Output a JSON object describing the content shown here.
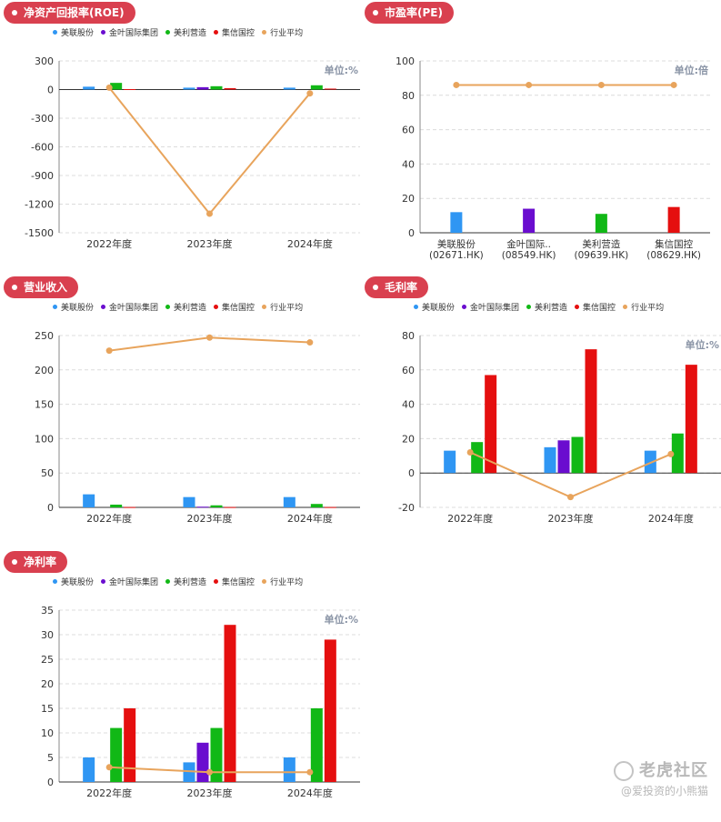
{
  "legend": [
    {
      "name": "美联股份",
      "color": "#2f96f3"
    },
    {
      "name": "金叶国际集团",
      "color": "#6a0dcf"
    },
    {
      "name": "美利营造",
      "color": "#11b816"
    },
    {
      "name": "集信国控",
      "color": "#e50f0f"
    },
    {
      "name": "行业平均",
      "color": "#e8a45c"
    }
  ],
  "watermark": {
    "brand": "老虎社区",
    "user": "@爱投资的小熊猫"
  },
  "chart_data": [
    {
      "title": "净资产回报率(ROE)",
      "type": "bar",
      "unit": "单位:%",
      "categories": [
        "2022年度",
        "2023年度",
        "2024年度"
      ],
      "ylim": [
        -1500,
        300
      ],
      "yticks": [
        300,
        0,
        -300,
        -600,
        -900,
        -1200,
        -1500
      ],
      "series": [
        {
          "name": "美联股份",
          "values": [
            30,
            20,
            20
          ]
        },
        {
          "name": "金叶国际集团",
          "values": [
            null,
            25,
            null
          ]
        },
        {
          "name": "美利营造",
          "values": [
            70,
            35,
            45
          ]
        },
        {
          "name": "集信国控",
          "values": [
            5,
            15,
            10
          ]
        }
      ],
      "line": {
        "name": "行业平均",
        "values": [
          20,
          -1300,
          -40
        ]
      },
      "legend": true
    },
    {
      "title": "市盈率(PE)",
      "type": "bar",
      "unit": "单位:倍",
      "categories": [
        "美联股份\n(02671.HK)",
        "金叶国际..\n(08549.HK)",
        "美利营造\n(09639.HK)",
        "集信国控\n(08629.HK)"
      ],
      "ylim": [
        0,
        100
      ],
      "yticks": [
        100,
        80,
        60,
        40,
        20,
        0
      ],
      "bars": [
        {
          "value": 12,
          "color": "#2f96f3"
        },
        {
          "value": 14,
          "color": "#6a0dcf"
        },
        {
          "value": 11,
          "color": "#11b816"
        },
        {
          "value": 15,
          "color": "#e50f0f"
        }
      ],
      "line": {
        "name": "行业平均",
        "values": [
          86,
          86,
          86,
          86
        ]
      },
      "legend": false
    },
    {
      "title": "营业收入",
      "type": "bar",
      "unit": "",
      "categories": [
        "2022年度",
        "2023年度",
        "2024年度"
      ],
      "ylim": [
        0,
        250
      ],
      "yticks": [
        250,
        200,
        150,
        100,
        50,
        0
      ],
      "series": [
        {
          "name": "美联股份",
          "values": [
            19,
            15,
            15
          ]
        },
        {
          "name": "金叶国际集团",
          "values": [
            null,
            1,
            null
          ]
        },
        {
          "name": "美利营造",
          "values": [
            4,
            3,
            5
          ]
        },
        {
          "name": "集信国控",
          "values": [
            0.5,
            0.5,
            0.5
          ]
        }
      ],
      "line": {
        "name": "行业平均",
        "values": [
          228,
          247,
          240
        ]
      },
      "legend": true
    },
    {
      "title": "毛利率",
      "type": "bar",
      "unit": "单位:%",
      "categories": [
        "2022年度",
        "2023年度",
        "2024年度"
      ],
      "ylim": [
        -20,
        80
      ],
      "yticks": [
        80,
        60,
        40,
        20,
        0,
        -20
      ],
      "series": [
        {
          "name": "美联股份",
          "values": [
            13,
            15,
            13
          ]
        },
        {
          "name": "金叶国际集团",
          "values": [
            null,
            19,
            null
          ]
        },
        {
          "name": "美利营造",
          "values": [
            18,
            21,
            23
          ]
        },
        {
          "name": "集信国控",
          "values": [
            57,
            72,
            63
          ]
        }
      ],
      "line": {
        "name": "行业平均",
        "values": [
          12,
          -14,
          11
        ]
      },
      "legend": true
    },
    {
      "title": "净利率",
      "type": "bar",
      "unit": "单位:%",
      "categories": [
        "2022年度",
        "2023年度",
        "2024年度"
      ],
      "ylim": [
        0,
        35
      ],
      "yticks": [
        35,
        30,
        25,
        20,
        15,
        10,
        5,
        0
      ],
      "series": [
        {
          "name": "美联股份",
          "values": [
            5,
            4,
            5
          ]
        },
        {
          "name": "金叶国际集团",
          "values": [
            null,
            8,
            null
          ]
        },
        {
          "name": "美利营造",
          "values": [
            11,
            11,
            15
          ]
        },
        {
          "name": "集信国控",
          "values": [
            15,
            32,
            29
          ]
        }
      ],
      "line": {
        "name": "行业平均",
        "values": [
          3,
          2,
          2
        ]
      },
      "legend": true
    }
  ]
}
